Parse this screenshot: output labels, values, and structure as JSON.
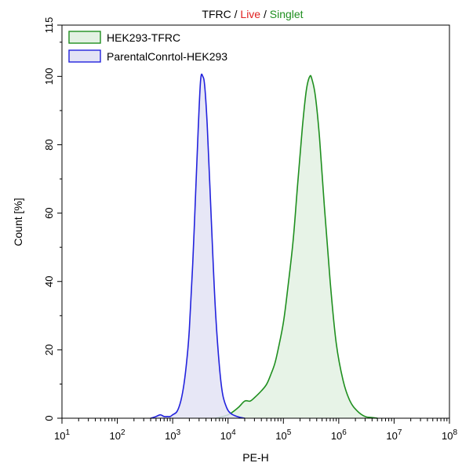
{
  "chart_data": {
    "type": "area",
    "title_parts": [
      {
        "text": "TFRC",
        "color": "#000000"
      },
      {
        "text": " / ",
        "color": "#000000"
      },
      {
        "text": "Live",
        "color": "#e02020"
      },
      {
        "text": " / ",
        "color": "#000000"
      },
      {
        "text": "Singlet",
        "color": "#1f8f1f"
      }
    ],
    "xlabel": "PE-H",
    "ylabel": "Count [%]",
    "x_scale": "log",
    "xlim": [
      10,
      100000000
    ],
    "ylim": [
      0,
      115
    ],
    "x_ticks": [
      {
        "value": 10,
        "base": "10",
        "exp": "1"
      },
      {
        "value": 100,
        "base": "10",
        "exp": "2"
      },
      {
        "value": 1000,
        "base": "10",
        "exp": "3"
      },
      {
        "value": 10000,
        "base": "10",
        "exp": "4"
      },
      {
        "value": 100000,
        "base": "10",
        "exp": "5"
      },
      {
        "value": 1000000,
        "base": "10",
        "exp": "6"
      },
      {
        "value": 10000000,
        "base": "10",
        "exp": "7"
      },
      {
        "value": 100000000,
        "base": "10",
        "exp": "8"
      }
    ],
    "y_ticks": [
      0,
      20,
      40,
      60,
      80,
      100,
      115
    ],
    "legend_position": "top-left",
    "series": [
      {
        "name": "HEK293-TFRC",
        "line_color": "#1f8f1f",
        "fill_color": "#e3f1e3",
        "x": [
          6000,
          10000,
          15000,
          20000,
          25000,
          30000,
          40000,
          50000,
          60000,
          70000,
          80000,
          100000,
          120000,
          150000,
          180000,
          220000,
          260000,
          300000,
          330000,
          380000,
          450000,
          550000,
          700000,
          900000,
          1200000,
          1600000,
          2200000,
          3000000,
          4000000,
          5000000
        ],
        "y": [
          0,
          1,
          3,
          5,
          5,
          6,
          8,
          10,
          13,
          16,
          20,
          28,
          38,
          52,
          68,
          85,
          96,
          100,
          99,
          94,
          82,
          62,
          40,
          22,
          11,
          5,
          2,
          0.5,
          0.2,
          0
        ]
      },
      {
        "name": "ParentalConrtol-HEK293",
        "line_color": "#2222dd",
        "fill_color": "#e3e3f5",
        "x": [
          400,
          500,
          600,
          700,
          800,
          900,
          1000,
          1200,
          1400,
          1600,
          1800,
          2000,
          2300,
          2600,
          2900,
          3200,
          3500,
          3800,
          4200,
          4700,
          5300,
          6000,
          7000,
          8000,
          9500,
          11000,
          13000,
          16000,
          20000
        ],
        "y": [
          0,
          0.5,
          1,
          0.5,
          0.5,
          0.5,
          1,
          2,
          5,
          10,
          17,
          26,
          45,
          66,
          85,
          99,
          100,
          97,
          86,
          68,
          48,
          30,
          15,
          7,
          3,
          1.5,
          0.8,
          0.3,
          0
        ]
      }
    ]
  }
}
